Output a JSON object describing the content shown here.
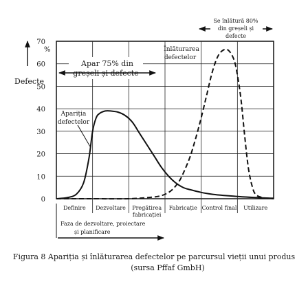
{
  "chart_data": {
    "type": "line",
    "ylabel": "Defecte",
    "y_unit": "%",
    "ylim": [
      0,
      70
    ],
    "y_ticks": [
      "70",
      "60",
      "50",
      "40",
      "30",
      "20",
      "10",
      "0"
    ],
    "y_tick_values": [
      70,
      60,
      50,
      40,
      30,
      20,
      10,
      0
    ],
    "phases": [
      "Definire",
      "Dezvoltare",
      "Pregătirea fabricației",
      "Fabricație",
      "Control final",
      "Utilizare"
    ],
    "phase_labels": [
      [
        "Definire"
      ],
      [
        "Dezvoltare"
      ],
      [
        "Pregătirea",
        "fabricației"
      ],
      [
        "Fabricație"
      ],
      [
        "Control final"
      ],
      [
        "Utilizare"
      ]
    ],
    "xlim": [
      0,
      6
    ],
    "series": [
      {
        "name": "Apariția defectelor",
        "label_lines": [
          "Apariția",
          "defectelor"
        ],
        "style": "solid",
        "x": [
          0,
          0.3,
          0.55,
          0.75,
          0.9,
          1.0,
          1.1,
          1.2,
          1.35,
          1.5,
          1.7,
          1.9,
          2.1,
          2.3,
          2.5,
          2.7,
          2.9,
          3.1,
          3.3,
          3.5,
          3.7,
          4.0,
          4.3,
          4.6,
          5.0,
          5.4,
          5.8,
          6.0
        ],
        "y": [
          0,
          0.5,
          2,
          7,
          18,
          30,
          36,
          38,
          39,
          39,
          38.5,
          37,
          34,
          29,
          24,
          19,
          14,
          10,
          7,
          5,
          4,
          2.8,
          2,
          1.5,
          1,
          0.6,
          0.3,
          0.2
        ]
      },
      {
        "name": "Înlăturarea defectelor",
        "label_lines": [
          "Înlăturarea",
          "defectelor"
        ],
        "style": "dashed",
        "x": [
          0,
          1.0,
          2.0,
          2.5,
          2.8,
          3.0,
          3.2,
          3.4,
          3.55,
          3.7,
          3.85,
          4.0,
          4.15,
          4.3,
          4.45,
          4.6,
          4.75,
          4.9,
          5.0,
          5.1,
          5.2,
          5.3,
          5.4,
          5.5,
          5.7,
          6.0
        ],
        "y": [
          0,
          0,
          0,
          0.5,
          1,
          2,
          4,
          8,
          13,
          19,
          27,
          36,
          46,
          56,
          63,
          66,
          66,
          62,
          55,
          44,
          28,
          14,
          6,
          2,
          0.5,
          0
        ]
      }
    ],
    "annotations": {
      "top_left": [
        "Apar 75% din",
        "greșeli și defecte"
      ],
      "top_right": [
        "Se înlătură 80%",
        "din greșeli și",
        "defecte"
      ],
      "bottom": [
        "Faza de dezvoltare, proiectare",
        "și planificare"
      ]
    }
  },
  "caption": {
    "line1": "Figura 8 Apariția și înlăturarea defectelor pe parcursul vieții unui produs",
    "line2": "(sursa Pffaf GmbH)"
  }
}
